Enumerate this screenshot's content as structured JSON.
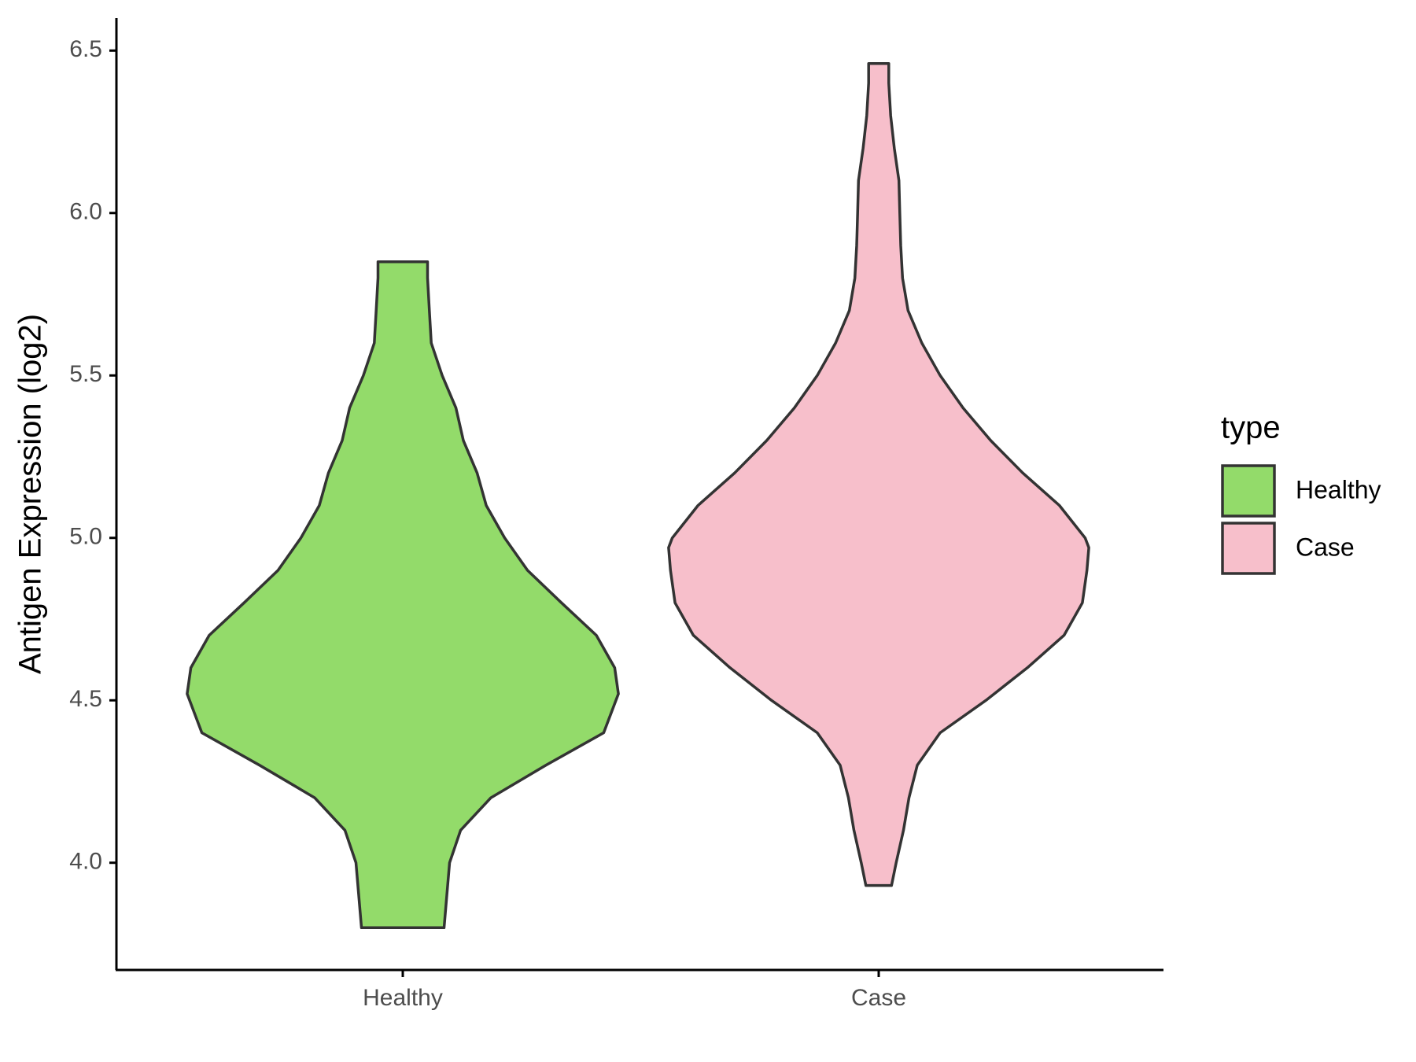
{
  "chart_data": {
    "type": "violin",
    "y_label": "Antigen Expression (log2)",
    "categories": [
      "Healthy",
      "Case"
    ],
    "legend_title": "type",
    "legend_position": "right",
    "ylim": [
      3.67,
      6.6
    ],
    "yticks": [
      {
        "value": 4,
        "label": "4.0"
      },
      4.5,
      {
        "value": 5,
        "label": "5.0"
      },
      5.5,
      {
        "value": 6,
        "label": "6.0"
      },
      6.5
    ],
    "series": [
      {
        "name": "Healthy",
        "color": "#93db6a",
        "y": [
          3.8,
          3.9,
          4.0,
          4.1,
          4.2,
          4.3,
          4.4,
          4.52,
          4.6,
          4.7,
          4.8,
          4.9,
          5.0,
          5.1,
          5.2,
          5.3,
          5.4,
          5.5,
          5.6,
          5.7,
          5.8,
          5.85
        ],
        "density": [
          45,
          48,
          51,
          63,
          96,
          156,
          219,
          235,
          231,
          211,
          173,
          136,
          111,
          91,
          81,
          66,
          58,
          43,
          31,
          29,
          27,
          27
        ]
      },
      {
        "name": "Case",
        "color": "#f7bfcb",
        "y": [
          3.93,
          4.0,
          4.1,
          4.2,
          4.3,
          4.4,
          4.5,
          4.6,
          4.7,
          4.8,
          4.9,
          4.97,
          5.0,
          5.1,
          5.2,
          5.3,
          5.4,
          5.5,
          5.6,
          5.7,
          5.8,
          5.9,
          6.0,
          6.1,
          6.2,
          6.3,
          6.4,
          6.46
        ],
        "density": [
          14,
          19,
          27,
          33,
          42,
          67,
          117,
          162,
          202,
          222,
          227,
          229,
          225,
          197,
          157,
          122,
          92,
          67,
          47,
          32,
          26,
          24,
          23,
          22,
          17,
          13,
          11,
          11
        ]
      }
    ]
  }
}
